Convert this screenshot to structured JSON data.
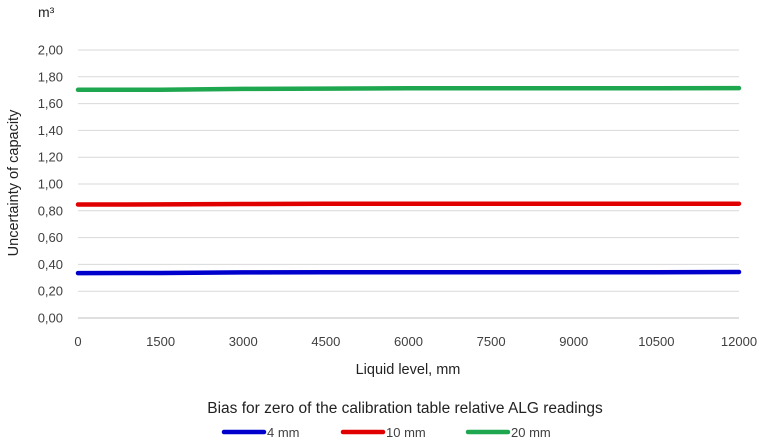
{
  "chart_data": {
    "type": "line",
    "unit_label": "m³",
    "ylabel": "Uncertainty of capacity",
    "xlabel": "Liquid level, mm",
    "caption": "Bias for zero of the calibration table relative ALG readings",
    "x": [
      0,
      1500,
      3000,
      4500,
      6000,
      7500,
      9000,
      10500,
      12000
    ],
    "x_tick_labels": [
      "0",
      "1500",
      "3000",
      "4500",
      "6000",
      "7500",
      "9000",
      "10500",
      "12000"
    ],
    "y_tick_labels": [
      "0,00",
      "0,20",
      "0,40",
      "0,60",
      "0,80",
      "1,00",
      "1,20",
      "1,40",
      "1,60",
      "1,80",
      "2,00"
    ],
    "ylim": [
      0,
      2
    ],
    "grid": "horizontal",
    "legend_position": "bottom",
    "series": [
      {
        "name": "4 mm",
        "color": "#0000cc",
        "values": [
          0.335,
          0.336,
          0.34,
          0.341,
          0.342,
          0.342,
          0.342,
          0.342,
          0.343
        ]
      },
      {
        "name": "10 mm",
        "color": "#e00000",
        "values": [
          0.847,
          0.848,
          0.851,
          0.852,
          0.853,
          0.853,
          0.853,
          0.853,
          0.853
        ]
      },
      {
        "name": "20 mm",
        "color": "#1fa750",
        "values": [
          1.703,
          1.704,
          1.71,
          1.712,
          1.714,
          1.715,
          1.715,
          1.715,
          1.716
        ]
      }
    ]
  }
}
